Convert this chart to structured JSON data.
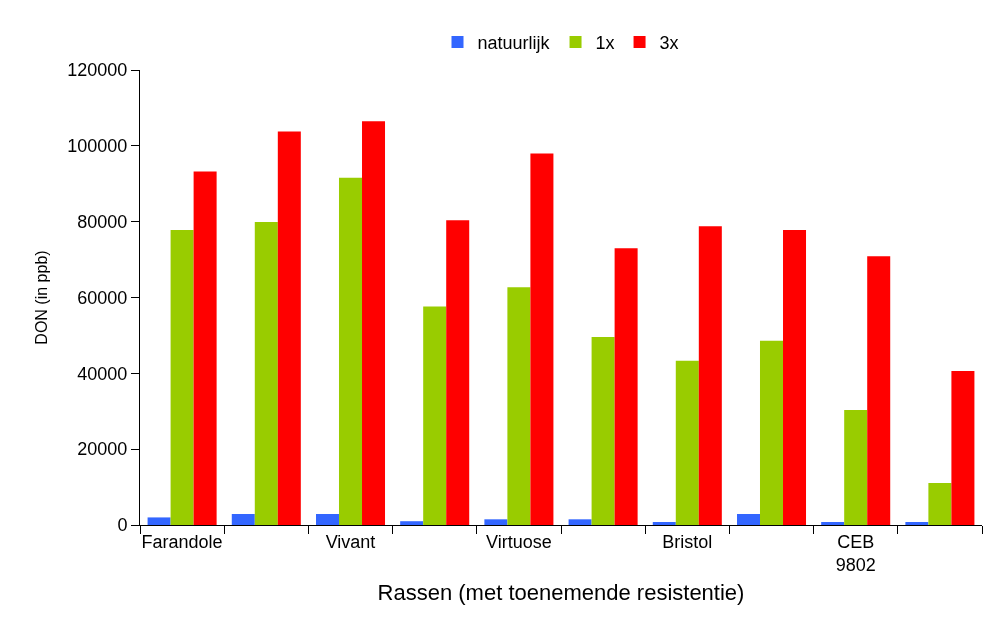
{
  "chart_data": {
    "type": "bar",
    "xlabel": "Rassen (met toenemende resistentie)",
    "ylabel": "DON (in ppb)",
    "categories": [
      "Farandole",
      null,
      "Vivant",
      null,
      "Virtuose",
      null,
      "Bristol",
      null,
      "CEB 9802",
      null
    ],
    "series": [
      {
        "name": "natuurlijk",
        "color": "#3366ff",
        "values": [
          2000,
          2900,
          2900,
          1000,
          1500,
          1500,
          800,
          2900,
          800,
          800
        ]
      },
      {
        "name": "1x",
        "color": "#99cc00",
        "values": [
          77800,
          79900,
          91600,
          57600,
          62700,
          49600,
          43300,
          48600,
          30300,
          11100
        ]
      },
      {
        "name": "3x",
        "color": "#ff0000",
        "values": [
          93200,
          103800,
          106500,
          80400,
          98000,
          73000,
          78800,
          77800,
          70900,
          40600
        ]
      }
    ],
    "ylim": [
      0,
      120000
    ],
    "yticks": [
      0,
      20000,
      40000,
      60000,
      80000,
      100000,
      120000
    ],
    "legend": "top"
  }
}
